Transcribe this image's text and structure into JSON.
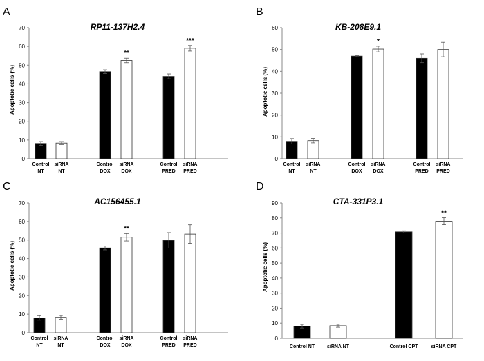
{
  "colors": {
    "control": "#000000",
    "sirna": "#ffffff",
    "outline": "#333333",
    "error": "#555555",
    "axis": "#888888"
  },
  "chart_data": [
    {
      "panel": "A",
      "type": "bar",
      "title": "RP11-137H2.4",
      "ylabel": "Apoptotic cells (%)",
      "xlabel": "",
      "ylim": [
        0,
        70
      ],
      "yticks": [
        0,
        10,
        20,
        30,
        40,
        50,
        60,
        70
      ],
      "groups": [
        {
          "bars": [
            {
              "label": [
                "Control",
                "NT"
              ],
              "kind": "control",
              "value": 8.2,
              "error": 1.0,
              "sig": ""
            },
            {
              "label": [
                "siRNA",
                "NT"
              ],
              "kind": "sirna",
              "value": 8.4,
              "error": 0.8,
              "sig": ""
            }
          ]
        },
        {
          "bars": [
            {
              "label": [
                "Control",
                "DOX"
              ],
              "kind": "control",
              "value": 46.5,
              "error": 1.0,
              "sig": ""
            },
            {
              "label": [
                "siRNA",
                "DOX"
              ],
              "kind": "sirna",
              "value": 52.5,
              "error": 1.2,
              "sig": "**"
            }
          ]
        },
        {
          "bars": [
            {
              "label": [
                "Control",
                "PRED"
              ],
              "kind": "control",
              "value": 44.0,
              "error": 1.3,
              "sig": ""
            },
            {
              "label": [
                "siRNA",
                "PRED"
              ],
              "kind": "sirna",
              "value": 59.0,
              "error": 1.5,
              "sig": "***"
            }
          ]
        }
      ]
    },
    {
      "panel": "B",
      "type": "bar",
      "title": "KB-208E9.1",
      "ylabel": "Apoptotic cells (%)",
      "xlabel": "",
      "ylim": [
        0,
        60
      ],
      "yticks": [
        0,
        10,
        20,
        30,
        40,
        50,
        60
      ],
      "groups": [
        {
          "bars": [
            {
              "label": [
                "Control",
                "NT"
              ],
              "kind": "control",
              "value": 8.0,
              "error": 1.2,
              "sig": ""
            },
            {
              "label": [
                "siRNA",
                "NT"
              ],
              "kind": "sirna",
              "value": 8.3,
              "error": 1.0,
              "sig": ""
            }
          ]
        },
        {
          "bars": [
            {
              "label": [
                "Control",
                "DOX"
              ],
              "kind": "control",
              "value": 47.0,
              "error": 0.3,
              "sig": ""
            },
            {
              "label": [
                "siRNA",
                "DOX"
              ],
              "kind": "sirna",
              "value": 50.2,
              "error": 1.3,
              "sig": "*"
            }
          ]
        },
        {
          "bars": [
            {
              "label": [
                "Control",
                "PRED"
              ],
              "kind": "control",
              "value": 46.0,
              "error": 2.0,
              "sig": ""
            },
            {
              "label": [
                "siRNA",
                "PRED"
              ],
              "kind": "sirna",
              "value": 50.0,
              "error": 3.3,
              "sig": ""
            }
          ]
        }
      ]
    },
    {
      "panel": "C",
      "type": "bar",
      "title": "AC156455.1",
      "ylabel": "Apoptotic cells (%)",
      "xlabel": "",
      "ylim": [
        0,
        70
      ],
      "yticks": [
        0,
        10,
        20,
        30,
        40,
        50,
        60,
        70
      ],
      "groups": [
        {
          "bars": [
            {
              "label": [
                "Control",
                "NT"
              ],
              "kind": "control",
              "value": 8.0,
              "error": 1.2,
              "sig": ""
            },
            {
              "label": [
                "siRNA",
                "NT"
              ],
              "kind": "sirna",
              "value": 8.3,
              "error": 1.0,
              "sig": ""
            }
          ]
        },
        {
          "bars": [
            {
              "label": [
                "Control",
                "DOX"
              ],
              "kind": "control",
              "value": 45.7,
              "error": 1.0,
              "sig": ""
            },
            {
              "label": [
                "siRNA",
                "DOX"
              ],
              "kind": "sirna",
              "value": 51.5,
              "error": 2.0,
              "sig": "**"
            }
          ]
        },
        {
          "bars": [
            {
              "label": [
                "Control",
                "PRED"
              ],
              "kind": "control",
              "value": 49.8,
              "error": 4.2,
              "sig": ""
            },
            {
              "label": [
                "siRNA",
                "PRED"
              ],
              "kind": "sirna",
              "value": 53.2,
              "error": 5.0,
              "sig": ""
            }
          ]
        }
      ]
    },
    {
      "panel": "D",
      "type": "bar",
      "title": "CTA-331P3.1",
      "ylabel": "Apoptotic cells (%)",
      "xlabel": "",
      "ylim": [
        0,
        90
      ],
      "yticks": [
        0,
        10,
        20,
        30,
        40,
        50,
        60,
        70,
        80,
        90
      ],
      "groups": [
        {
          "bars": [
            {
              "label": [
                "Control NT"
              ],
              "kind": "control",
              "value": 8.0,
              "error": 1.2,
              "sig": ""
            },
            {
              "label": [
                "siRNA NT"
              ],
              "kind": "sirna",
              "value": 8.3,
              "error": 1.0,
              "sig": ""
            }
          ]
        },
        {
          "bars": [
            {
              "label": [
                "Control CPT"
              ],
              "kind": "control",
              "value": 70.8,
              "error": 0.7,
              "sig": ""
            },
            {
              "label": [
                "siRNA CPT"
              ],
              "kind": "sirna",
              "value": 77.8,
              "error": 2.3,
              "sig": "**"
            }
          ]
        }
      ]
    }
  ]
}
